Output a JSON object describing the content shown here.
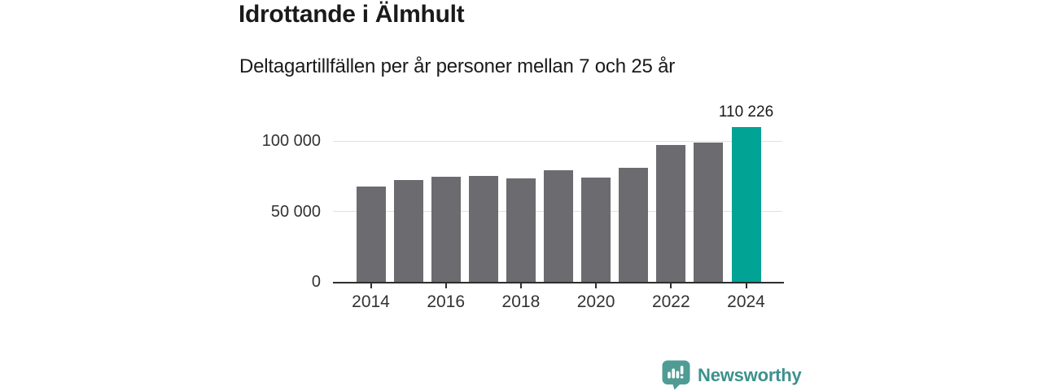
{
  "header": {
    "title": "Idrottande i Älmhult",
    "subtitle": "Deltagartillfällen per år personer mellan 7 och 25 år"
  },
  "chart_data": {
    "type": "bar",
    "title": "Idrottande i Älmhult",
    "subtitle": "Deltagartillfällen per år personer mellan 7 och 25 år",
    "categories": [
      "2014",
      "2015",
      "2016",
      "2017",
      "2018",
      "2019",
      "2020",
      "2021",
      "2022",
      "2023",
      "2024"
    ],
    "values": [
      67700,
      72400,
      74900,
      75100,
      73600,
      79300,
      74300,
      81300,
      97400,
      98700,
      110226
    ],
    "highlight_index": 10,
    "annotation": {
      "text": "110 226",
      "category": "2024"
    },
    "yticks": [
      {
        "value": 0,
        "label": "0"
      },
      {
        "value": 50000,
        "label": "50 000"
      },
      {
        "value": 100000,
        "label": "100 000"
      }
    ],
    "xtick_labels": [
      "2014",
      "2016",
      "2018",
      "2020",
      "2022",
      "2024"
    ],
    "xtick_indices": [
      0,
      2,
      4,
      6,
      8,
      10
    ],
    "ylim": [
      0,
      125000
    ],
    "grid": true,
    "legend": false,
    "xlabel": "",
    "ylabel": "",
    "colors": {
      "bar": "#6b6b70",
      "highlight": "#00a394",
      "grid": "#e1e1e1",
      "axis": "#2e2e2e",
      "tick_label": "#333333",
      "annotation": "#1a1a1a"
    }
  },
  "footer": {
    "brand": "Newsworthy",
    "brand_color": "#3e918c",
    "icon_color": "#4f9c95",
    "icon_name": "newsworthy-logo"
  }
}
